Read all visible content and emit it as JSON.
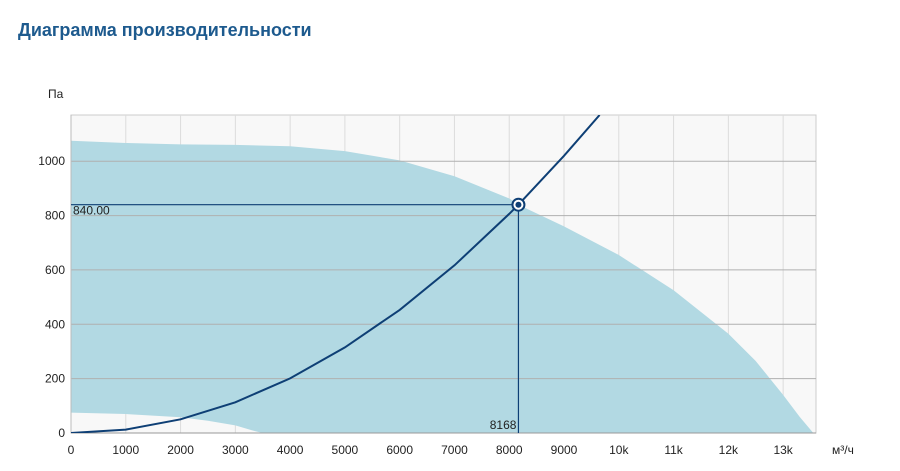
{
  "page": {
    "title": "Диаграмма производительности"
  },
  "chart_data": {
    "type": "line",
    "title": "Диаграмма производительности",
    "ylabel": "Па",
    "xlabel": "м³/ч",
    "xlim": [
      0,
      13600
    ],
    "ylim": [
      0,
      1170
    ],
    "x_ticks": [
      0,
      1000,
      2000,
      3000,
      4000,
      5000,
      6000,
      7000,
      8000,
      9000,
      10000,
      11000,
      12000,
      13000
    ],
    "x_tick_labels": [
      "0",
      "1000",
      "2000",
      "3000",
      "4000",
      "5000",
      "6000",
      "7000",
      "8000",
      "9000",
      "10k",
      "11k",
      "12k",
      "13k"
    ],
    "y_ticks": [
      0,
      200,
      400,
      600,
      800,
      1000
    ],
    "y_tick_labels": [
      "0",
      "200",
      "400",
      "600",
      "800",
      "1000"
    ],
    "grid": true,
    "series": [
      {
        "kind": "area",
        "color": "#b2d9e3",
        "upper": [
          [
            0,
            1075
          ],
          [
            1000,
            1067
          ],
          [
            2000,
            1062
          ],
          [
            3000,
            1060
          ],
          [
            4000,
            1055
          ],
          [
            5000,
            1037
          ],
          [
            6000,
            1003
          ],
          [
            7000,
            945
          ],
          [
            8000,
            863
          ],
          [
            8168,
            840
          ],
          [
            9000,
            760
          ],
          [
            10000,
            655
          ],
          [
            11000,
            525
          ],
          [
            12000,
            365
          ],
          [
            12500,
            265
          ],
          [
            13000,
            140
          ],
          [
            13300,
            60
          ],
          [
            13550,
            0
          ]
        ],
        "lower": [
          [
            0,
            75
          ],
          [
            1000,
            70
          ],
          [
            2000,
            58
          ],
          [
            2500,
            45
          ],
          [
            3000,
            28
          ],
          [
            3300,
            10
          ],
          [
            3500,
            0
          ]
        ]
      },
      {
        "kind": "line",
        "color": "#0e3f75",
        "points": [
          [
            0,
            0
          ],
          [
            1000,
            12.6
          ],
          [
            2000,
            50.4
          ],
          [
            3000,
            113
          ],
          [
            4000,
            201
          ],
          [
            5000,
            315
          ],
          [
            6000,
            453
          ],
          [
            7000,
            617
          ],
          [
            8000,
            806
          ],
          [
            8168,
            840
          ],
          [
            9000,
            1020
          ],
          [
            9650,
            1170
          ]
        ]
      }
    ],
    "operating_point": {
      "x": 8168,
      "y": 840,
      "x_label": "8168",
      "y_label": "840.00"
    }
  }
}
